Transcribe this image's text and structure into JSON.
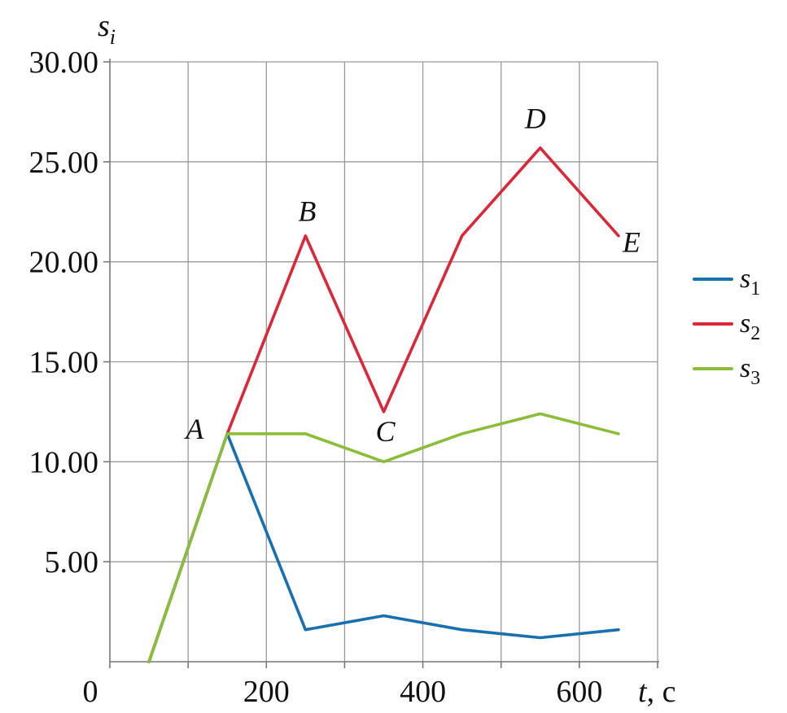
{
  "chart_data": {
    "type": "line",
    "ylabel": {
      "var": "s",
      "sub": "i"
    },
    "xlabel": {
      "var": "t",
      "unit": ", с"
    },
    "xlim": [
      0,
      700
    ],
    "ylim": [
      0,
      30
    ],
    "x_ticks": [
      0,
      200,
      400,
      600
    ],
    "x_tick_labels": [
      "0",
      "200",
      "400",
      "600"
    ],
    "x_minor_step": 100,
    "y_ticks": [
      5,
      10,
      15,
      20,
      25,
      30
    ],
    "y_tick_labels": [
      "5.00",
      "10.00",
      "15.00",
      "20.00",
      "25.00",
      "30.00"
    ],
    "grid": true,
    "legend_position": "right",
    "series": [
      {
        "name": "s",
        "sub": "1",
        "color": "#1a6fad",
        "x": [
          50,
          150,
          250,
          350,
          450,
          550,
          650
        ],
        "y": [
          0,
          11.4,
          1.6,
          2.3,
          1.6,
          1.2,
          1.6
        ]
      },
      {
        "name": "s",
        "sub": "2",
        "color": "#d8283a",
        "x": [
          50,
          150,
          250,
          350,
          450,
          550,
          650
        ],
        "y": [
          0,
          11.4,
          21.3,
          12.5,
          21.3,
          25.7,
          21.3
        ]
      },
      {
        "name": "s",
        "sub": "3",
        "color": "#8dbb3a",
        "x": [
          50,
          150,
          250,
          350,
          450,
          550,
          650
        ],
        "y": [
          0,
          11.4,
          11.4,
          10.0,
          11.4,
          12.4,
          11.4
        ]
      }
    ],
    "annotations": [
      {
        "text": "A",
        "x": 150,
        "y": 11.4
      },
      {
        "text": "B",
        "x": 250,
        "y": 21.3
      },
      {
        "text": "C",
        "x": 350,
        "y": 12.5
      },
      {
        "text": "D",
        "x": 550,
        "y": 25.7
      },
      {
        "text": "E",
        "x": 650,
        "y": 21.3
      }
    ]
  }
}
